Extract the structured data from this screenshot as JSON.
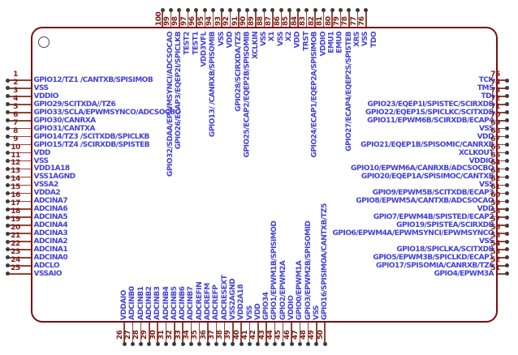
{
  "diagram": {
    "kind": "ic-pinout-100",
    "colors": {
      "body_outline": "#7a0e12",
      "pin_line": "#91462e",
      "pin_number": "#7c1a1a",
      "pin_label": "#4242d4",
      "pin_dot": "#3c3c3c",
      "background": "#ffffff"
    },
    "pin1_indicator": "circle"
  },
  "pins": {
    "left": [
      {
        "num": "1",
        "label": "GPIO12/TZ1 /CANTXB/SPISIMOB"
      },
      {
        "num": "2",
        "label": "VSS"
      },
      {
        "num": "3",
        "label": "VDDIO"
      },
      {
        "num": "4",
        "label": "GPIO29/SCITXDA//TZ6"
      },
      {
        "num": "5",
        "label": "GPIO33/SCLA/EPWMSYNCO/ADCSOCBO"
      },
      {
        "num": "6",
        "label": "GPIO30/CANRXA"
      },
      {
        "num": "7",
        "label": "GPIO31/CANTXA"
      },
      {
        "num": "8",
        "label": "GPIO14/TZ3 /SCITXDB/SPICLKB"
      },
      {
        "num": "9",
        "label": "GPIO15/TZ4 /SCIRXDB/SPISTEB"
      },
      {
        "num": "10",
        "label": "VDD"
      },
      {
        "num": "11",
        "label": "VSS"
      },
      {
        "num": "12",
        "label": "VDD1A18"
      },
      {
        "num": "13",
        "label": "VSS1AGND"
      },
      {
        "num": "14",
        "label": "VSSA2"
      },
      {
        "num": "15",
        "label": "VDDA2"
      },
      {
        "num": "16",
        "label": "ADCINA7"
      },
      {
        "num": "17",
        "label": "ADCINA6"
      },
      {
        "num": "18",
        "label": "ADCINA5"
      },
      {
        "num": "19",
        "label": "ADCINA4"
      },
      {
        "num": "20",
        "label": "ADCINA3"
      },
      {
        "num": "21",
        "label": "ADCINA2"
      },
      {
        "num": "22",
        "label": "ADCINA1"
      },
      {
        "num": "23",
        "label": "ADCINA0"
      },
      {
        "num": "24",
        "label": "ADCLO"
      },
      {
        "num": "25",
        "label": "VSSAIO"
      }
    ],
    "bottom": [
      {
        "num": "26",
        "label": "VDDAIO"
      },
      {
        "num": "27",
        "label": "ADCINB0"
      },
      {
        "num": "28",
        "label": "ADCINB1"
      },
      {
        "num": "29",
        "label": "ADCINB2"
      },
      {
        "num": "30",
        "label": "ADCINB3"
      },
      {
        "num": "31",
        "label": "ADCINB4"
      },
      {
        "num": "32",
        "label": "ADCINB5"
      },
      {
        "num": "33",
        "label": "ADCINB6"
      },
      {
        "num": "34",
        "label": "ADCINB7"
      },
      {
        "num": "35",
        "label": "ADCREFIN"
      },
      {
        "num": "36",
        "label": "ADCREFM"
      },
      {
        "num": "37",
        "label": "ADCREFP"
      },
      {
        "num": "38",
        "label": "ADCRESEXT"
      },
      {
        "num": "39",
        "label": "VSS2AGND"
      },
      {
        "num": "40",
        "label": "VDD2A18"
      },
      {
        "num": "41",
        "label": "VSS"
      },
      {
        "num": "42",
        "label": "VDD"
      },
      {
        "num": "43",
        "label": "GPIO34"
      },
      {
        "num": "44",
        "label": "GPIO1/EPWM1B/SPISIMOD"
      },
      {
        "num": "45",
        "label": "GPIO2/EPWM2A"
      },
      {
        "num": "46",
        "label": "VDDIO"
      },
      {
        "num": "47",
        "label": "GPIO0/EPWM1A"
      },
      {
        "num": "48",
        "label": "GPIO3/EPWM2B/SPISOMID"
      },
      {
        "num": "49",
        "label": "VSS"
      },
      {
        "num": "50",
        "label": "GPIO16/SPISIMOA/CANTXB/TZ5"
      }
    ],
    "right": [
      {
        "num": "75",
        "label": "TCK"
      },
      {
        "num": "74",
        "label": "TMS"
      },
      {
        "num": "73",
        "label": "TDI"
      },
      {
        "num": "72",
        "label": "GPIO23/EQEP1I/SPISTEC/SCIRXDB"
      },
      {
        "num": "71",
        "label": "GPIO22/EQEP1S/SPICLKC/SCITXDB"
      },
      {
        "num": "70",
        "label": "GPIO11/EPWM6B/SCIRXDB/ECAP4"
      },
      {
        "num": "69",
        "label": "VSS"
      },
      {
        "num": "68",
        "label": "VDD"
      },
      {
        "num": "67",
        "label": "GPIO21/EQEP1B/SPISOMIC/CANRXB"
      },
      {
        "num": "66",
        "label": "XCLKOUT"
      },
      {
        "num": "65",
        "label": "VDDIO"
      },
      {
        "num": "64",
        "label": "GPIO10/EPWM6A/CANRXB/ADCSOCBO"
      },
      {
        "num": "63",
        "label": "GPIO20/EQEP1A/SPISIMOC/CANTXB"
      },
      {
        "num": "62",
        "label": "VSS"
      },
      {
        "num": "61",
        "label": "GPIO9/EPWM5B/SCITXDB/ECAP3"
      },
      {
        "num": "60",
        "label": "GPIO8/EPWM5A/CANTXB/ADCSOCAO"
      },
      {
        "num": "59",
        "label": "VDD"
      },
      {
        "num": "58",
        "label": "GPIO7/EPWM4B/SPISTED/ECAP2"
      },
      {
        "num": "57",
        "label": "GPIO19/SPISTEA/SCIRXDB"
      },
      {
        "num": "56",
        "label": "GPIO6/EPWM4A/EPWMSYNCI/EPWMSYNCO"
      },
      {
        "num": "55",
        "label": "VSS"
      },
      {
        "num": "54",
        "label": "GPIO18/SPICLKA/SCITXDB"
      },
      {
        "num": "53",
        "label": "GPIO5/EPWM3B/SPICLKD/ECAP1"
      },
      {
        "num": "52",
        "label": "GPIO17/SPISOMIA/CANRXB/TZ6"
      },
      {
        "num": "51",
        "label": "GPIO4/EPWM3A"
      }
    ],
    "top": [
      {
        "num": "100",
        "label": "GPIO32/SDAA/EPWMSYNCI/ADCSOCAO"
      },
      {
        "num": "99",
        "label": "GPIO26/ECAP3/EQEP2I/SPICLKB"
      },
      {
        "num": "98",
        "label": "TEST2"
      },
      {
        "num": "97",
        "label": "TEST1"
      },
      {
        "num": "96",
        "label": "VDD3VFL"
      },
      {
        "num": "95",
        "label": "GPIO13/ /CANRXB/SPISOMIB"
      },
      {
        "num": "94",
        "label": "VSS"
      },
      {
        "num": "93",
        "label": "VDD"
      },
      {
        "num": "92",
        "label": "GPIO28/SCIRXDA/TZ5"
      },
      {
        "num": "91",
        "label": "GPIO25/ECAP2/EQEP2B/SPISOMIB"
      },
      {
        "num": "90",
        "label": "XCLKIN"
      },
      {
        "num": "89",
        "label": "VSS"
      },
      {
        "num": "88",
        "label": "X1"
      },
      {
        "num": "87",
        "label": "VSS"
      },
      {
        "num": "86",
        "label": "X2"
      },
      {
        "num": "85",
        "label": "VDD"
      },
      {
        "num": "84",
        "label": "TRST"
      },
      {
        "num": "83",
        "label": "GPIO24/ECAP1/EQEP2A/SPISIMOB"
      },
      {
        "num": "82",
        "label": "VDDIO"
      },
      {
        "num": "81",
        "label": "EMU1"
      },
      {
        "num": "80",
        "label": "EMU0"
      },
      {
        "num": "79",
        "label": "GPIO27/ECAP4/EQEP2S/SPISTEB"
      },
      {
        "num": "78",
        "label": "XRS"
      },
      {
        "num": "77",
        "label": "VSS"
      },
      {
        "num": "76",
        "label": "TDO"
      }
    ]
  }
}
